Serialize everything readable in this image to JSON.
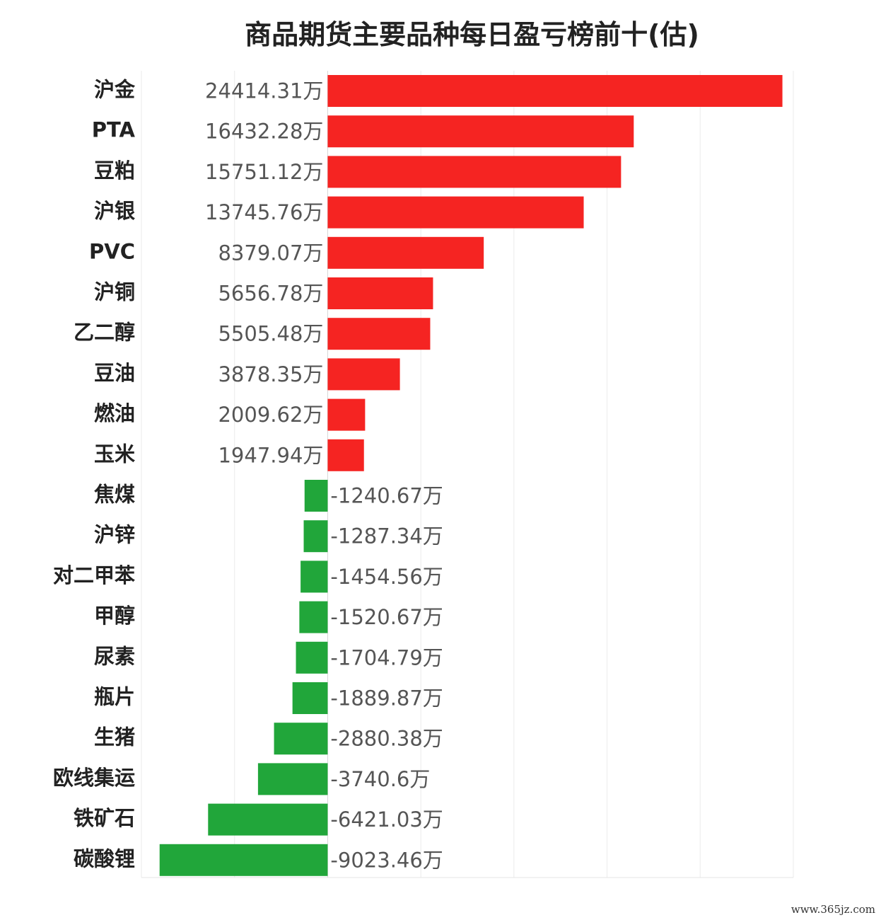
{
  "chart_data": {
    "type": "bar",
    "orientation": "horizontal",
    "title": "商品期货主要品种每日盈亏榜前十(估)",
    "unit": "万",
    "categories": [
      "沪金",
      "PTA",
      "豆粕",
      "沪银",
      "PVC",
      "沪铜",
      "乙二醇",
      "豆油",
      "燃油",
      "玉米",
      "焦煤",
      "沪锌",
      "对二甲苯",
      "甲醇",
      "尿素",
      "瓶片",
      "生猪",
      "欧线集运",
      "铁矿石",
      "碳酸锂"
    ],
    "values": [
      24414.31,
      16432.28,
      15751.12,
      13745.76,
      8379.07,
      5656.78,
      5505.48,
      3878.35,
      2009.62,
      1947.94,
      -1240.67,
      -1287.34,
      -1454.56,
      -1520.67,
      -1704.79,
      -1889.87,
      -2880.38,
      -3740.6,
      -6421.03,
      -9023.46
    ],
    "value_labels": [
      "24414.31万",
      "16432.28万",
      "15751.12万",
      "13745.76万",
      "8379.07万",
      "5656.78万",
      "5505.48万",
      "3878.35万",
      "2009.62万",
      "1947.94万",
      "-1240.67万",
      "-1287.34万",
      "-1454.56万",
      "-1520.67万",
      "-1704.79万",
      "-1889.87万",
      "-2880.38万",
      "-3740.6万",
      "-6421.03万",
      "-9023.46万"
    ],
    "xlim": [
      -10000,
      25000
    ],
    "grid": true,
    "positive_color": "#f52422",
    "negative_color": "#21a63a"
  },
  "watermark": "www.365jz.com"
}
